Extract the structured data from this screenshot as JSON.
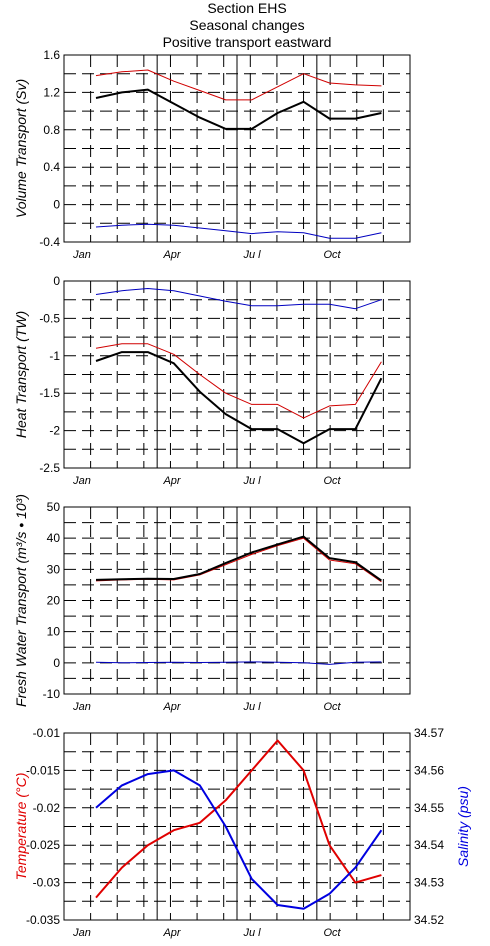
{
  "title_lines": [
    "Section EHS",
    "Seasonal changes",
    "Positive transport eastward"
  ],
  "chart_data": [
    {
      "type": "line",
      "ylabel": "Volume Transport (Sv)",
      "ylim": [
        -0.4,
        1.6
      ],
      "yticks": [
        "1.6",
        "1.2",
        "0.8",
        "0.4",
        "0",
        "-0.4"
      ],
      "month_labels": [
        "Jan",
        "Apr",
        "Ju l",
        "Oct"
      ],
      "x": [
        1,
        2,
        3,
        4,
        5,
        6,
        7,
        8,
        9,
        10,
        11,
        12
      ],
      "grid": true,
      "series": [
        {
          "color": "#d00000",
          "width": 1,
          "values": [
            1.38,
            1.42,
            1.44,
            1.32,
            1.22,
            1.12,
            1.12,
            1.26,
            1.4,
            1.3,
            1.28,
            1.27
          ]
        },
        {
          "color": "#000000",
          "width": 2,
          "values": [
            1.14,
            1.2,
            1.23,
            1.08,
            0.93,
            0.81,
            0.81,
            0.98,
            1.1,
            0.92,
            0.92,
            0.98
          ]
        },
        {
          "color": "#0000c0",
          "width": 1,
          "values": [
            -0.24,
            -0.22,
            -0.21,
            -0.22,
            -0.25,
            -0.28,
            -0.31,
            -0.29,
            -0.3,
            -0.36,
            -0.36,
            -0.3
          ]
        }
      ]
    },
    {
      "type": "line",
      "ylabel": "Heat Transport (TW)",
      "ylim": [
        -2.5,
        0
      ],
      "yticks": [
        "0",
        "-0.5",
        "-1",
        "-1.5",
        "-2",
        "-2.5"
      ],
      "month_labels": [
        "Jan",
        "Apr",
        "Ju l",
        "Oct"
      ],
      "x": [
        1,
        2,
        3,
        4,
        5,
        6,
        7,
        8,
        9,
        10,
        11,
        12
      ],
      "grid": true,
      "series": [
        {
          "color": "#0000c0",
          "width": 1,
          "values": [
            -0.18,
            -0.13,
            -0.1,
            -0.13,
            -0.2,
            -0.27,
            -0.33,
            -0.33,
            -0.31,
            -0.31,
            -0.37,
            -0.25
          ]
        },
        {
          "color": "#d00000",
          "width": 1,
          "values": [
            -0.9,
            -0.84,
            -0.84,
            -0.98,
            -1.25,
            -1.5,
            -1.65,
            -1.65,
            -1.83,
            -1.67,
            -1.65,
            -1.08
          ]
        },
        {
          "color": "#000000",
          "width": 2,
          "values": [
            -1.07,
            -0.95,
            -0.95,
            -1.1,
            -1.48,
            -1.78,
            -1.98,
            -1.98,
            -2.17,
            -1.98,
            -1.98,
            -1.3
          ]
        }
      ]
    },
    {
      "type": "line",
      "ylabel": "Fresh Water Transport (m³/s • 10³)",
      "ylim": [
        -10,
        50
      ],
      "yticks": [
        "50",
        "40",
        "30",
        "20",
        "10",
        "0",
        "-10"
      ],
      "month_labels": [
        "Jan",
        "Apr",
        "Ju l",
        "Oct"
      ],
      "x": [
        1,
        2,
        3,
        4,
        5,
        6,
        7,
        8,
        9,
        10,
        11,
        12
      ],
      "grid": true,
      "series": [
        {
          "color": "#0000c0",
          "width": 1,
          "values": [
            0.2,
            0.0,
            0.1,
            0.2,
            0.1,
            0.2,
            0.3,
            0.2,
            0.0,
            -0.5,
            0.2,
            0.3
          ]
        },
        {
          "color": "#d00000",
          "width": 1,
          "values": [
            26.3,
            26.6,
            26.8,
            26.6,
            28.2,
            31.5,
            34.8,
            37.6,
            40.0,
            33.0,
            31.8,
            26.0
          ]
        },
        {
          "color": "#000000",
          "width": 2,
          "values": [
            26.6,
            26.8,
            27.0,
            26.9,
            28.5,
            32.0,
            35.4,
            38.0,
            40.5,
            33.6,
            32.3,
            26.4
          ]
        }
      ]
    },
    {
      "type": "line",
      "ylabel": "Temperature (°C)",
      "ylabel_right": "Salinity (psu)",
      "ylim": [
        -0.035,
        -0.01
      ],
      "ylim_right": [
        34.52,
        34.57
      ],
      "yticks": [
        "-0.01",
        "-0.015",
        "-0.02",
        "-0.025",
        "-0.03",
        "-0.035"
      ],
      "yticks_right": [
        "34.57",
        "34.56",
        "34.55",
        "34.54",
        "34.53",
        "34.52"
      ],
      "month_labels": [
        "Jan",
        "Apr",
        "Ju l",
        "Oct"
      ],
      "x": [
        1,
        2,
        3,
        4,
        5,
        6,
        7,
        8,
        9,
        10,
        11,
        12
      ],
      "grid": true,
      "label_colors": {
        "left": "#e00000",
        "right": "#0000e0"
      },
      "series": [
        {
          "color": "#e00000",
          "width": 2,
          "axis": "left",
          "values": [
            -0.032,
            -0.028,
            -0.025,
            -0.023,
            -0.022,
            -0.019,
            -0.015,
            -0.011,
            -0.015,
            -0.025,
            -0.03,
            -0.029
          ]
        },
        {
          "color": "#0000e0",
          "width": 2,
          "axis": "right",
          "values": [
            34.55,
            34.556,
            34.559,
            34.56,
            34.556,
            34.545,
            34.531,
            34.524,
            34.523,
            34.527,
            34.534,
            34.544
          ]
        }
      ]
    }
  ]
}
